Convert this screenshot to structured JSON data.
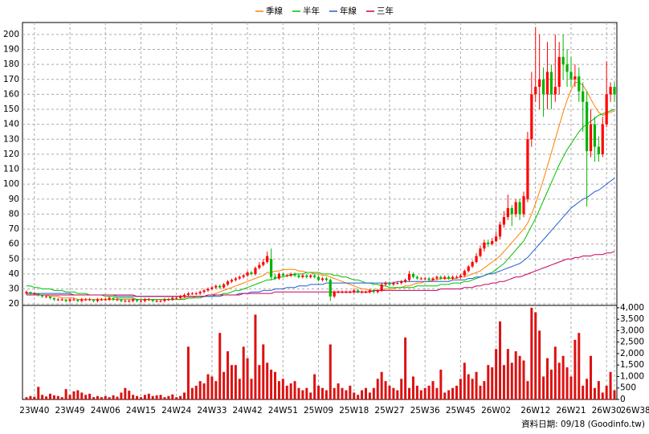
{
  "chart_data": {
    "type": "candlestick",
    "series": [
      {
        "name": "季線",
        "color": "#ff7f00",
        "values": [
          27,
          27,
          27,
          26,
          26,
          26,
          25,
          25,
          25,
          24,
          24,
          24,
          24,
          23,
          23,
          23,
          23,
          23,
          23,
          23,
          23,
          23,
          23,
          23,
          23,
          23,
          23,
          23,
          23,
          23,
          23,
          23,
          23,
          23,
          23,
          23,
          23,
          23,
          23,
          23,
          24,
          24,
          24,
          25,
          25,
          25,
          26,
          26,
          27,
          28,
          29,
          30,
          31,
          32,
          33,
          34,
          35,
          36,
          37,
          38,
          39,
          41,
          41,
          42,
          42,
          43,
          43,
          43,
          43,
          42,
          42,
          41,
          41,
          40,
          40,
          39,
          39,
          38,
          37,
          36,
          35,
          34,
          33,
          32,
          31,
          30,
          30,
          29,
          29,
          29,
          29,
          30,
          30,
          30,
          31,
          31,
          32,
          32,
          33,
          34,
          34,
          35,
          35,
          36,
          36,
          37,
          37,
          37,
          37,
          37,
          38,
          38,
          39,
          40,
          41,
          42,
          44,
          46,
          48,
          50,
          52,
          55,
          58,
          61,
          64,
          67,
          70,
          74,
          80,
          87,
          95,
          103,
          112,
          121,
          130,
          139,
          148,
          156,
          163,
          168,
          168,
          166,
          162,
          157,
          152,
          148,
          146,
          147,
          148,
          149
        ]
      },
      {
        "name": "半年",
        "color": "#00c000",
        "values": [
          32,
          32,
          31,
          31,
          30,
          30,
          30,
          29,
          29,
          29,
          28,
          28,
          28,
          27,
          27,
          27,
          26,
          26,
          26,
          26,
          25,
          25,
          25,
          24,
          24,
          24,
          24,
          24,
          23,
          23,
          23,
          23,
          23,
          23,
          23,
          23,
          23,
          23,
          23,
          23,
          23,
          24,
          24,
          24,
          24,
          25,
          25,
          25,
          26,
          26,
          27,
          27,
          28,
          29,
          29,
          30,
          31,
          32,
          33,
          34,
          35,
          36,
          36,
          37,
          38,
          38,
          39,
          39,
          40,
          40,
          40,
          41,
          41,
          41,
          41,
          40,
          40,
          40,
          39,
          39,
          38,
          38,
          37,
          36,
          36,
          35,
          34,
          34,
          33,
          33,
          32,
          32,
          31,
          31,
          31,
          31,
          31,
          31,
          31,
          32,
          32,
          32,
          32,
          32,
          32,
          33,
          33,
          33,
          34,
          34,
          34,
          35,
          35,
          36,
          37,
          38,
          39,
          40,
          41,
          43,
          45,
          47,
          50,
          53,
          56,
          59,
          62,
          67,
          72,
          77,
          83,
          89,
          95,
          101,
          107,
          113,
          118,
          123,
          127,
          131,
          135,
          138,
          140,
          142,
          144,
          146,
          147,
          148,
          149,
          150
        ]
      },
      {
        "name": "年線",
        "color": "#1f5fd0",
        "values": [
          27,
          27,
          27,
          27,
          27,
          27,
          27,
          27,
          27,
          27,
          27,
          27,
          26,
          26,
          26,
          26,
          26,
          26,
          26,
          26,
          26,
          26,
          26,
          25,
          25,
          25,
          25,
          25,
          25,
          25,
          25,
          25,
          25,
          25,
          25,
          25,
          25,
          25,
          25,
          25,
          25,
          25,
          25,
          25,
          25,
          25,
          25,
          25,
          25,
          25,
          26,
          26,
          26,
          26,
          27,
          27,
          27,
          28,
          28,
          28,
          29,
          29,
          29,
          30,
          30,
          30,
          31,
          31,
          31,
          32,
          32,
          32,
          33,
          33,
          33,
          33,
          34,
          34,
          34,
          34,
          34,
          34,
          34,
          34,
          34,
          34,
          34,
          34,
          34,
          34,
          34,
          34,
          34,
          34,
          35,
          35,
          35,
          35,
          35,
          35,
          35,
          35,
          35,
          35,
          35,
          35,
          35,
          35,
          36,
          36,
          36,
          36,
          37,
          37,
          38,
          38,
          39,
          40,
          40,
          41,
          42,
          43,
          44,
          45,
          46,
          47,
          49,
          51,
          54,
          57,
          60,
          63,
          66,
          69,
          72,
          75,
          78,
          81,
          84,
          86,
          88,
          90,
          91,
          93,
          95,
          96,
          98,
          100,
          102,
          104
        ]
      },
      {
        "name": "三年",
        "color": "#c8005a",
        "values": [
          26,
          26,
          26,
          26,
          26,
          26,
          26,
          26,
          26,
          26,
          26,
          26,
          26,
          26,
          26,
          26,
          26,
          26,
          26,
          26,
          26,
          26,
          26,
          26,
          26,
          26,
          26,
          26,
          25,
          25,
          25,
          25,
          25,
          25,
          25,
          25,
          25,
          25,
          25,
          25,
          25,
          25,
          25,
          25,
          25,
          25,
          26,
          26,
          26,
          26,
          26,
          26,
          26,
          26,
          26,
          27,
          27,
          27,
          27,
          27,
          27,
          27,
          27,
          28,
          28,
          28,
          28,
          28,
          28,
          28,
          28,
          28,
          28,
          28,
          28,
          28,
          28,
          28,
          28,
          28,
          28,
          28,
          28,
          28,
          28,
          28,
          28,
          28,
          29,
          29,
          29,
          29,
          29,
          29,
          29,
          29,
          29,
          29,
          29,
          29,
          29,
          29,
          29,
          29,
          29,
          30,
          30,
          30,
          30,
          30,
          30,
          31,
          31,
          31,
          32,
          32,
          33,
          33,
          34,
          34,
          35,
          35,
          36,
          37,
          38,
          38,
          39,
          40,
          41,
          42,
          43,
          44,
          45,
          46,
          47,
          48,
          49,
          50,
          50,
          51,
          51,
          52,
          52,
          52,
          53,
          53,
          53,
          54,
          54,
          55
        ]
      }
    ],
    "categories": [
      null,
      null,
      "23W40",
      null,
      null,
      null,
      null,
      null,
      null,
      null,
      null,
      "23W49",
      null,
      null,
      null,
      null,
      null,
      null,
      null,
      null,
      "24W06",
      null,
      null,
      null,
      null,
      null,
      null,
      null,
      null,
      "24W15",
      null,
      null,
      null,
      null,
      null,
      null,
      null,
      null,
      "24W24",
      null,
      null,
      null,
      null,
      null,
      null,
      null,
      null,
      "24W33",
      null,
      null,
      null,
      null,
      null,
      null,
      null,
      null,
      "24W42",
      null,
      null,
      null,
      null,
      null,
      null,
      null,
      null,
      "24W51",
      null,
      null,
      null,
      null,
      null,
      null,
      null,
      null,
      "25W09",
      null,
      null,
      null,
      null,
      null,
      null,
      null,
      null,
      "25W18",
      null,
      null,
      null,
      null,
      null,
      null,
      null,
      null,
      "25W27",
      null,
      null,
      null,
      null,
      null,
      null,
      null,
      null,
      "25W36",
      null,
      null,
      null,
      null,
      null,
      null,
      null,
      null,
      "25W45",
      null,
      null,
      null,
      null,
      null,
      null,
      null,
      null,
      "26W02",
      null,
      null,
      null,
      null,
      null,
      null,
      null,
      null,
      null,
      "26W12",
      null,
      null,
      null,
      null,
      null,
      null,
      null,
      null,
      "26W21",
      null,
      null,
      null,
      null,
      null,
      null,
      null,
      null,
      "26W30",
      null,
      "26W38"
    ],
    "open": [
      27,
      28,
      27,
      27,
      26,
      25,
      25,
      24,
      23,
      23,
      23,
      22,
      23,
      23,
      22,
      23,
      23,
      23,
      22,
      23,
      23,
      23,
      24,
      23,
      23,
      22,
      22,
      22,
      23,
      22,
      22,
      23,
      23,
      22,
      22,
      22,
      23,
      23,
      24,
      24,
      25,
      26,
      27,
      27,
      27,
      28,
      29,
      30,
      31,
      32,
      31,
      33,
      35,
      36,
      37,
      38,
      39,
      41,
      40,
      44,
      46,
      48,
      50,
      38,
      37,
      40,
      39,
      39,
      40,
      39,
      38,
      39,
      38,
      39,
      38,
      36,
      37,
      36,
      25,
      28,
      28,
      28,
      28,
      28,
      29,
      28,
      28,
      28,
      29,
      28,
      29,
      33,
      34,
      33,
      34,
      34,
      35,
      36,
      40,
      38,
      37,
      37,
      37,
      36,
      37,
      38,
      37,
      38,
      37,
      38,
      38,
      39,
      42,
      45,
      48,
      52,
      57,
      61,
      60,
      62,
      65,
      73,
      78,
      84,
      80,
      88,
      80,
      90,
      130,
      160,
      165,
      170,
      160,
      175,
      160,
      165,
      185,
      180,
      175,
      170,
      172,
      162,
      155,
      122,
      140,
      125,
      120,
      140,
      160,
      165
    ],
    "high": [
      29,
      28,
      28,
      27,
      26,
      26,
      25,
      24,
      24,
      24,
      23,
      24,
      24,
      23,
      24,
      24,
      24,
      23,
      24,
      24,
      24,
      25,
      24,
      24,
      23,
      23,
      23,
      24,
      23,
      23,
      24,
      24,
      23,
      23,
      23,
      24,
      24,
      25,
      25,
      26,
      27,
      28,
      28,
      28,
      29,
      30,
      31,
      32,
      33,
      33,
      34,
      36,
      37,
      38,
      39,
      40,
      42,
      42,
      45,
      48,
      50,
      55,
      57,
      40,
      41,
      41,
      40,
      41,
      41,
      40,
      40,
      40,
      40,
      40,
      39,
      38,
      38,
      37,
      29,
      29,
      29,
      29,
      29,
      30,
      30,
      29,
      29,
      30,
      30,
      30,
      34,
      35,
      35,
      35,
      35,
      36,
      37,
      42,
      41,
      39,
      38,
      38,
      38,
      38,
      39,
      39,
      39,
      39,
      39,
      39,
      40,
      43,
      46,
      49,
      54,
      59,
      63,
      63,
      64,
      68,
      75,
      82,
      93,
      86,
      90,
      90,
      95,
      135,
      175,
      205,
      200,
      178,
      195,
      180,
      200,
      195,
      200,
      190,
      185,
      180,
      178,
      168,
      162,
      150,
      145,
      132,
      145,
      182,
      168,
      168
    ],
    "low": [
      26,
      26,
      26,
      25,
      24,
      24,
      23,
      22,
      22,
      22,
      21,
      21,
      22,
      21,
      21,
      22,
      22,
      21,
      21,
      22,
      22,
      22,
      22,
      22,
      21,
      21,
      21,
      21,
      21,
      21,
      21,
      22,
      21,
      21,
      21,
      21,
      22,
      22,
      23,
      23,
      24,
      25,
      26,
      26,
      26,
      27,
      28,
      29,
      30,
      30,
      30,
      32,
      34,
      35,
      36,
      37,
      38,
      39,
      39,
      43,
      45,
      47,
      36,
      36,
      36,
      38,
      38,
      38,
      38,
      37,
      37,
      37,
      37,
      37,
      35,
      35,
      35,
      22,
      24,
      27,
      27,
      27,
      27,
      27,
      27,
      27,
      27,
      27,
      27,
      27,
      28,
      32,
      32,
      32,
      33,
      33,
      34,
      35,
      37,
      36,
      36,
      36,
      35,
      35,
      36,
      36,
      36,
      36,
      36,
      37,
      37,
      38,
      41,
      44,
      47,
      51,
      55,
      58,
      59,
      61,
      63,
      71,
      76,
      72,
      78,
      76,
      78,
      88,
      125,
      155,
      150,
      145,
      150,
      150,
      155,
      160,
      170,
      165,
      165,
      165,
      155,
      135,
      85,
      118,
      115,
      115,
      118,
      138,
      155,
      155
    ],
    "close": [
      28,
      27,
      27,
      26,
      25,
      25,
      24,
      23,
      23,
      23,
      22,
      23,
      23,
      22,
      23,
      23,
      23,
      22,
      23,
      23,
      23,
      24,
      23,
      23,
      22,
      22,
      22,
      23,
      22,
      22,
      23,
      23,
      22,
      22,
      22,
      23,
      23,
      24,
      24,
      25,
      26,
      27,
      27,
      27,
      28,
      29,
      30,
      31,
      32,
      31,
      33,
      35,
      36,
      37,
      38,
      39,
      41,
      40,
      44,
      46,
      48,
      52,
      38,
      37,
      40,
      39,
      39,
      40,
      39,
      38,
      39,
      38,
      39,
      38,
      36,
      37,
      36,
      25,
      28,
      28,
      28,
      28,
      28,
      29,
      28,
      28,
      28,
      29,
      28,
      29,
      33,
      34,
      33,
      34,
      34,
      35,
      36,
      40,
      38,
      37,
      37,
      37,
      36,
      37,
      38,
      37,
      38,
      37,
      38,
      38,
      39,
      42,
      45,
      48,
      52,
      57,
      61,
      60,
      62,
      65,
      73,
      78,
      84,
      80,
      88,
      80,
      92,
      130,
      160,
      165,
      170,
      160,
      175,
      160,
      165,
      185,
      180,
      175,
      170,
      172,
      162,
      155,
      122,
      140,
      125,
      120,
      140,
      160,
      165,
      160
    ],
    "volume": [
      100,
      150,
      120,
      550,
      200,
      130,
      250,
      180,
      150,
      100,
      450,
      200,
      350,
      400,
      300,
      200,
      250,
      100,
      150,
      100,
      150,
      100,
      180,
      120,
      300,
      500,
      380,
      200,
      150,
      100,
      200,
      250,
      150,
      180,
      200,
      100,
      150,
      220,
      100,
      150,
      300,
      2300,
      500,
      600,
      800,
      700,
      1100,
      1000,
      800,
      2900,
      1200,
      2100,
      1500,
      1500,
      900,
      2300,
      1800,
      900,
      3700,
      1500,
      2400,
      1600,
      1300,
      1200,
      800,
      900,
      600,
      700,
      800,
      500,
      400,
      500,
      300,
      1100,
      600,
      500,
      400,
      2400,
      500,
      700,
      500,
      400,
      600,
      300,
      200,
      400,
      500,
      300,
      500,
      900,
      1200,
      800,
      600,
      500,
      400,
      900,
      2700,
      500,
      1000,
      600,
      400,
      500,
      600,
      800,
      500,
      1300,
      300,
      400,
      500,
      600,
      900,
      1600,
      1100,
      900,
      1200,
      600,
      800,
      1500,
      1400,
      2200,
      3400,
      1500,
      2200,
      1600,
      2100,
      1900,
      1700,
      800,
      4000,
      3800,
      3000,
      1000,
      1800,
      1300,
      2300,
      1600,
      1900,
      1400,
      1000,
      2600,
      2900,
      600,
      900,
      1900,
      500,
      800,
      300,
      600,
      1200,
      400
    ],
    "up_color": "#ff0000",
    "down_color": "#00b400",
    "volume_color": "#dd1111",
    "ylim": [
      19,
      208
    ],
    "yticks": [
      20,
      30,
      40,
      50,
      60,
      70,
      80,
      90,
      100,
      110,
      120,
      130,
      140,
      150,
      160,
      170,
      180,
      190,
      200
    ],
    "y2lim": [
      0,
      4100
    ],
    "y2ticks": [
      0,
      500,
      {
        "value": 1000,
        "label": "1,000"
      },
      {
        "value": 1500,
        "label": "1,500"
      },
      {
        "value": 2000,
        "label": "2,000"
      },
      {
        "value": 2500,
        "label": "2,500"
      },
      {
        "value": 3000,
        "label": "3,000"
      },
      {
        "value": 3500,
        "label": "3,500"
      },
      {
        "value": 4000,
        "label": "4,000"
      }
    ],
    "grid": true,
    "footnote": "資料日期: 09/18 (Goodinfo.tw)"
  }
}
